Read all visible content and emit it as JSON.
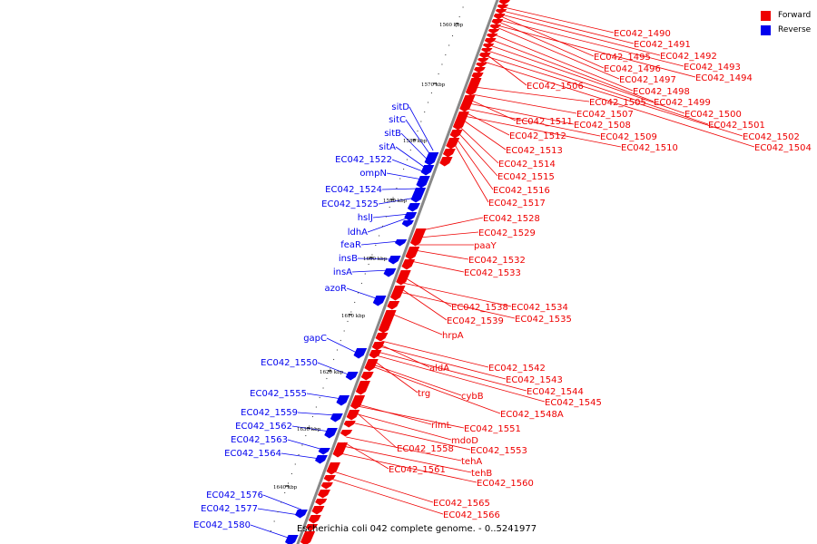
{
  "genome_title": "Escherichia coli 042 complete genome. - 0..5241977",
  "legend": [
    {
      "label": "Forward",
      "color": "#ee0000"
    },
    {
      "label": "Reverse",
      "color": "#0000ee"
    }
  ],
  "colors": {
    "forward": "#ee0000",
    "reverse": "#0000ee",
    "backbone": "#888888"
  },
  "ticks": [
    "1560 kbp",
    "1570 kbp",
    "1580 kbp",
    "1590 kbp",
    "1600 kbp",
    "1610 kbp",
    "1620 kbp",
    "1630 kbp",
    "1640 kbp"
  ],
  "forward_labels": [
    "EC042_1490",
    "EC042_1491",
    "EC042_1495",
    "EC042_1492",
    "EC042_1496",
    "EC042_1493",
    "EC042_1497",
    "EC042_1494",
    "EC042_1506",
    "EC042_1498",
    "EC042_1505",
    "EC042_1499",
    "EC042_1507",
    "EC042_1500",
    "EC042_1511",
    "EC042_1508",
    "EC042_1501",
    "EC042_1512",
    "EC042_1509",
    "EC042_1502",
    "EC042_1510",
    "EC042_1504",
    "EC042_1513",
    "EC042_1514",
    "EC042_1515",
    "EC042_1516",
    "EC042_1517",
    "EC042_1528",
    "EC042_1529",
    "paaY",
    "EC042_1532",
    "EC042_1533",
    "EC042_1538",
    "EC042_1534",
    "EC042_1539",
    "EC042_1535",
    "hrpA",
    "aldA",
    "EC042_1542",
    "EC042_1543",
    "trg",
    "cybB",
    "EC042_1544",
    "EC042_1545",
    "EC042_1548A",
    "rimL",
    "EC042_1551",
    "mdoD",
    "EC042_1558",
    "EC042_1553",
    "tehA",
    "EC042_1561",
    "tehB",
    "EC042_1560",
    "EC042_1565",
    "EC042_1566"
  ],
  "reverse_labels": [
    "sitD",
    "sitC",
    "sitB",
    "sitA",
    "EC042_1522",
    "ompN",
    "EC042_1524",
    "EC042_1525",
    "hslJ",
    "ldhA",
    "feaR",
    "insB",
    "insA",
    "azoR",
    "gapC",
    "EC042_1550",
    "EC042_1555",
    "EC042_1559",
    "EC042_1562",
    "EC042_1563",
    "EC042_1564",
    "EC042_1576",
    "EC042_1577",
    "EC042_1580"
  ]
}
